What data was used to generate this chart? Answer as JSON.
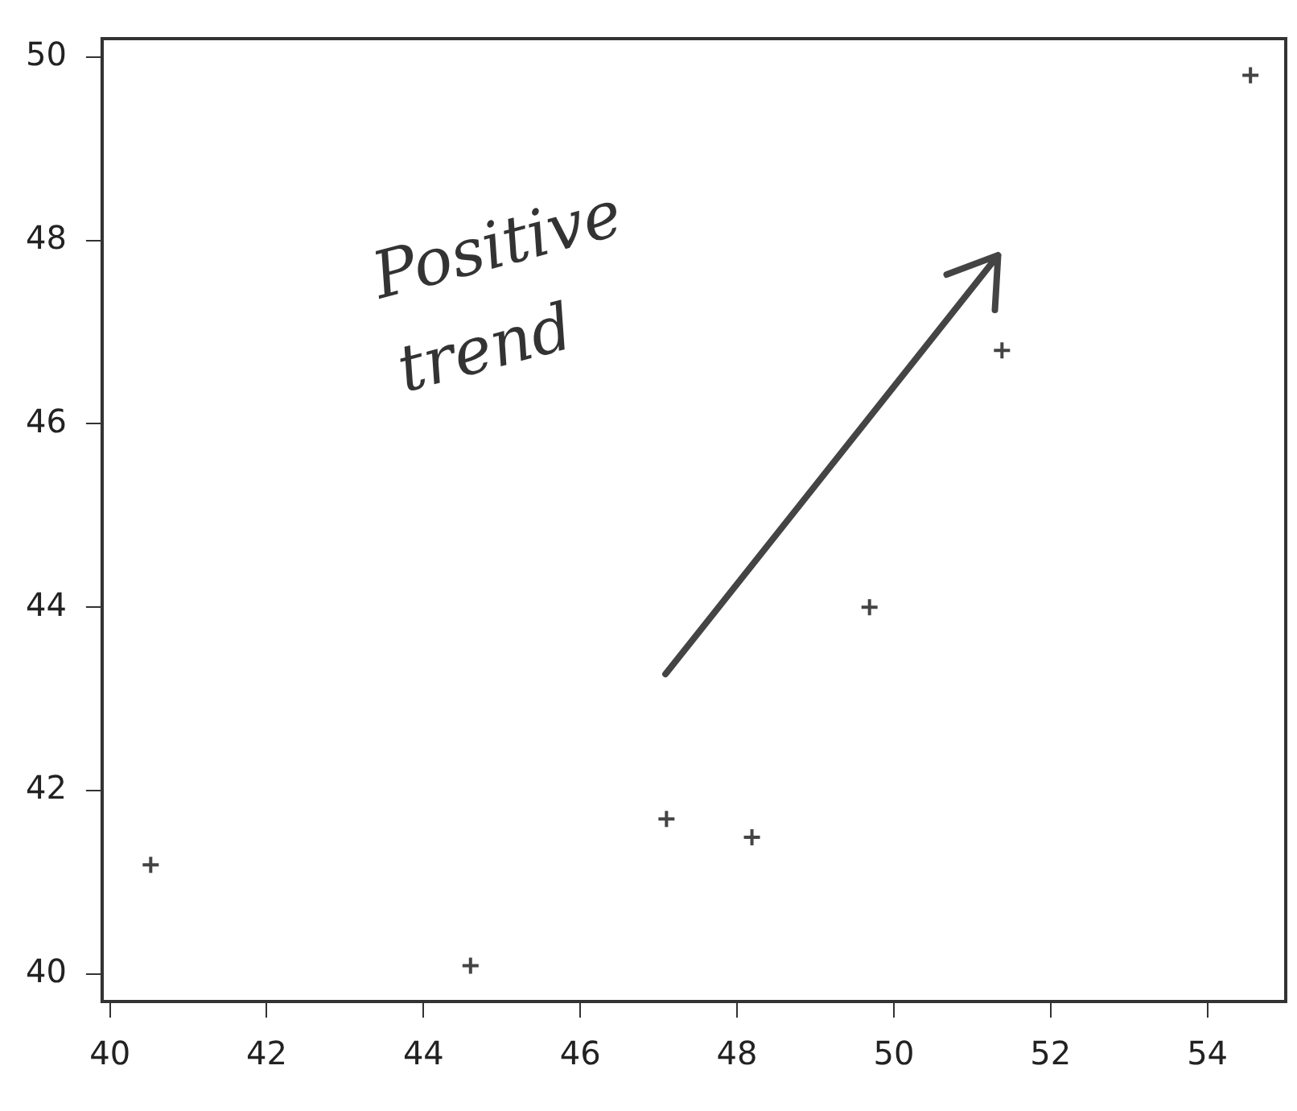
{
  "chart_data": {
    "type": "scatter",
    "color": "#444444",
    "marker": "cross",
    "grid": false,
    "legend": false,
    "x": [
      40.52,
      44.6,
      47.1,
      48.19,
      49.69,
      51.38,
      54.55
    ],
    "values": [
      41.19,
      40.09,
      41.69,
      41.49,
      44.0,
      46.8,
      49.8
    ],
    "xlim": [
      39.9,
      55
    ],
    "ylim": [
      39.7,
      50.2
    ],
    "xticks": [
      40,
      42,
      44,
      46,
      48,
      50,
      52,
      54
    ],
    "yticks": [
      40,
      42,
      44,
      46,
      48,
      50
    ],
    "annotations": [
      "Positive trend"
    ]
  }
}
